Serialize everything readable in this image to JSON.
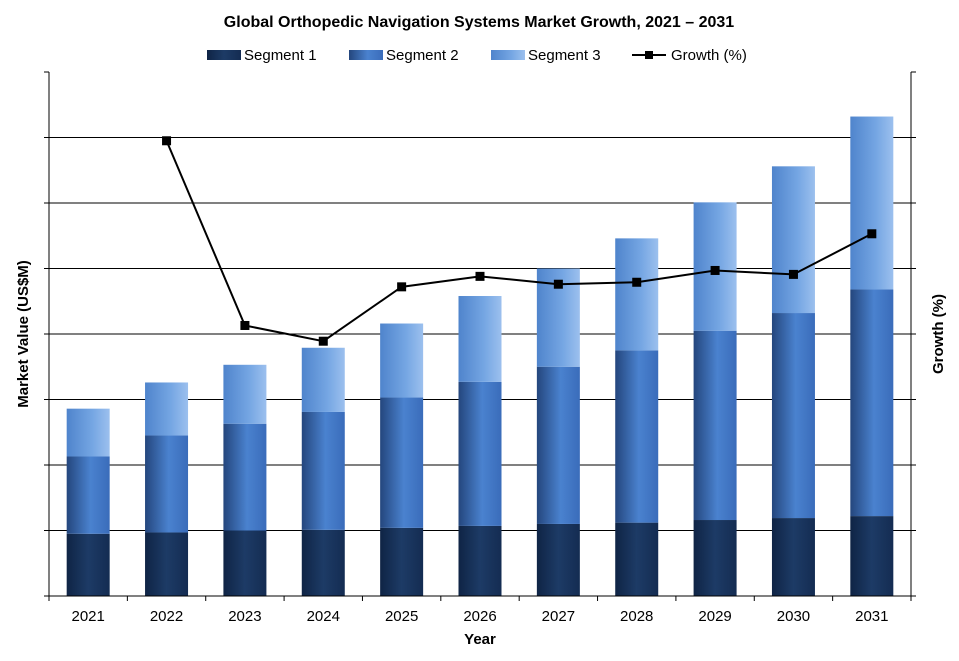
{
  "chart_data": {
    "type": "bar",
    "stacked": true,
    "title": "Global Orthopedic Navigation Systems Market Growth, 2021 – 2031",
    "xlabel": "Year",
    "ylabel": "Market Value (US$M)",
    "y2label": "Growth (%)",
    "categories": [
      "2021",
      "2022",
      "2023",
      "2024",
      "2025",
      "2026",
      "2027",
      "2028",
      "2029",
      "2030",
      "2031"
    ],
    "y_axis_tick_labels_shown": false,
    "ylim": [
      0,
      8
    ],
    "y2lim": [
      0,
      8
    ],
    "grid": true,
    "legend_position": "top",
    "series": [
      {
        "name": "Segment 1",
        "kind": "bar",
        "color": "#17365d",
        "values": [
          0.95,
          0.97,
          1.0,
          1.01,
          1.04,
          1.07,
          1.1,
          1.12,
          1.16,
          1.19,
          1.22
        ]
      },
      {
        "name": "Segment 2",
        "kind": "bar",
        "color": "#3c70c0",
        "values": [
          1.18,
          1.48,
          1.63,
          1.8,
          1.99,
          2.2,
          2.4,
          2.63,
          2.89,
          3.13,
          3.46
        ]
      },
      {
        "name": "Segment 3",
        "kind": "bar",
        "color": "#6a9ee0",
        "values": [
          0.73,
          0.81,
          0.9,
          0.98,
          1.13,
          1.31,
          1.5,
          1.71,
          1.96,
          2.24,
          2.64
        ]
      },
      {
        "name": "Growth (%)",
        "kind": "line",
        "axis": "secondary",
        "color": "#000000",
        "values": [
          null,
          6.95,
          4.13,
          3.89,
          4.72,
          4.88,
          4.76,
          4.79,
          4.97,
          4.91,
          5.53
        ]
      }
    ]
  }
}
